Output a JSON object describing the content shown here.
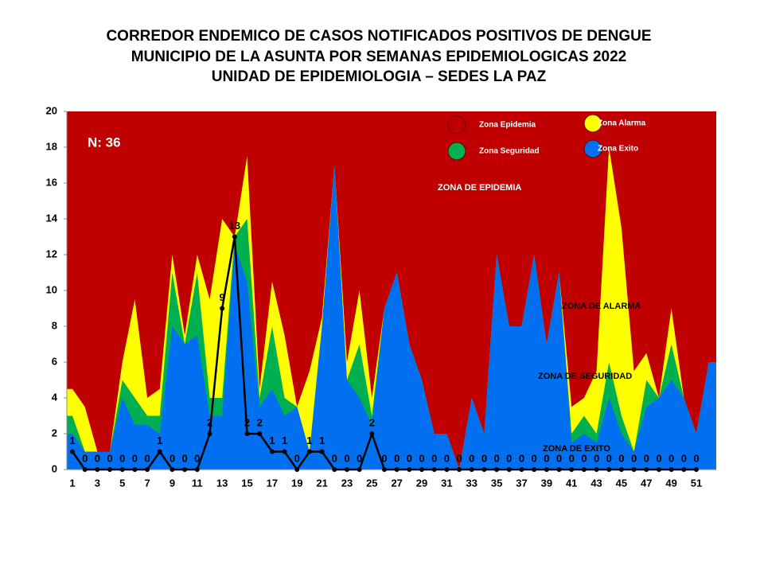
{
  "chart_data": {
    "type": "endemic-corridor",
    "title": [
      "CORREDOR ENDEMICO DE CASOS NOTIFICADOS POSITIVOS DE DENGUE",
      "MUNICIPIO DE LA ASUNTA  POR SEMANAS EPIDEMIOLOGICAS 2022",
      "UNIDAD DE EPIDEMIOLOGIA – SEDES LA PAZ"
    ],
    "annotations": [
      "N: 36",
      "ZONA DE EPIDEMIA",
      "ZONA DE ALARMA",
      "ZONA DE  SEGURIDAD",
      "ZONA DE  EXITO"
    ],
    "categories": [
      1,
      null,
      3,
      null,
      5,
      null,
      7,
      null,
      9,
      null,
      11,
      null,
      13,
      null,
      15,
      null,
      17,
      null,
      19,
      null,
      21,
      null,
      23,
      null,
      25,
      null,
      27,
      null,
      29,
      null,
      31,
      null,
      33,
      null,
      35,
      null,
      37,
      null,
      39,
      null,
      41,
      null,
      43,
      null,
      45,
      null,
      47,
      null,
      49,
      null,
      51,
      null
    ],
    "ylim": [
      0,
      20
    ],
    "yticks": [
      0,
      2,
      4,
      6,
      8,
      10,
      12,
      14,
      16,
      18,
      20
    ],
    "zones": [
      {
        "name": "Zona Epidemia",
        "color": "#c00000"
      },
      {
        "name": "Zona Alarma",
        "color": "#ffff00",
        "values": [
          4.5,
          3.5,
          1,
          1,
          6,
          9.5,
          4,
          4.5,
          12,
          7.5,
          12,
          9.5,
          14,
          13,
          17.5,
          4.5,
          10.5,
          7.5,
          3.5,
          5.5,
          8.5,
          17,
          6,
          10,
          4,
          9,
          11,
          7,
          5,
          2,
          2,
          0,
          4,
          2,
          12,
          8,
          8,
          12,
          7,
          11,
          3.5,
          4,
          5.5,
          18,
          13.5,
          5.5,
          6.5,
          4,
          9,
          4,
          2,
          6
        ]
      },
      {
        "name": "Zona Seguridad",
        "color": "#00b050",
        "values": [
          3,
          1,
          1,
          1,
          5,
          4,
          3,
          3,
          11,
          7,
          11,
          4,
          4,
          13,
          14,
          4,
          8,
          4,
          3.5,
          1,
          8,
          17,
          5,
          7,
          3,
          9,
          11,
          7,
          5,
          2,
          2,
          0,
          4,
          2,
          12,
          8,
          8,
          12,
          7,
          11,
          2,
          3,
          2,
          6,
          3,
          1,
          5,
          4,
          7,
          4,
          2,
          6
        ]
      },
      {
        "name": "Zona Exito",
        "color": "#0070f0",
        "values": [
          2,
          1,
          1,
          1,
          4,
          2.5,
          2.5,
          2,
          8,
          7,
          7.5,
          3,
          3,
          12.5,
          10.5,
          3.5,
          4.5,
          3,
          3.5,
          1,
          8,
          17,
          5,
          4,
          2.5,
          9,
          11,
          7,
          5,
          2,
          2,
          0,
          4,
          2,
          12,
          8,
          8,
          12,
          7,
          11,
          1.5,
          2,
          1.5,
          4,
          2,
          1,
          3.5,
          4,
          5,
          4,
          2,
          6
        ]
      }
    ],
    "cases": {
      "color": "#000000",
      "values": [
        1,
        0,
        0,
        0,
        0,
        0,
        0,
        1,
        0,
        0,
        0,
        2,
        9,
        13,
        2,
        2,
        1,
        1,
        0,
        1,
        1,
        0,
        0,
        0,
        2,
        0,
        0,
        0,
        0,
        0,
        0,
        0,
        0,
        0,
        0,
        0,
        0,
        0,
        0,
        0,
        0,
        0,
        0,
        0,
        0,
        0,
        0,
        0,
        0,
        0,
        0,
        null
      ]
    }
  }
}
